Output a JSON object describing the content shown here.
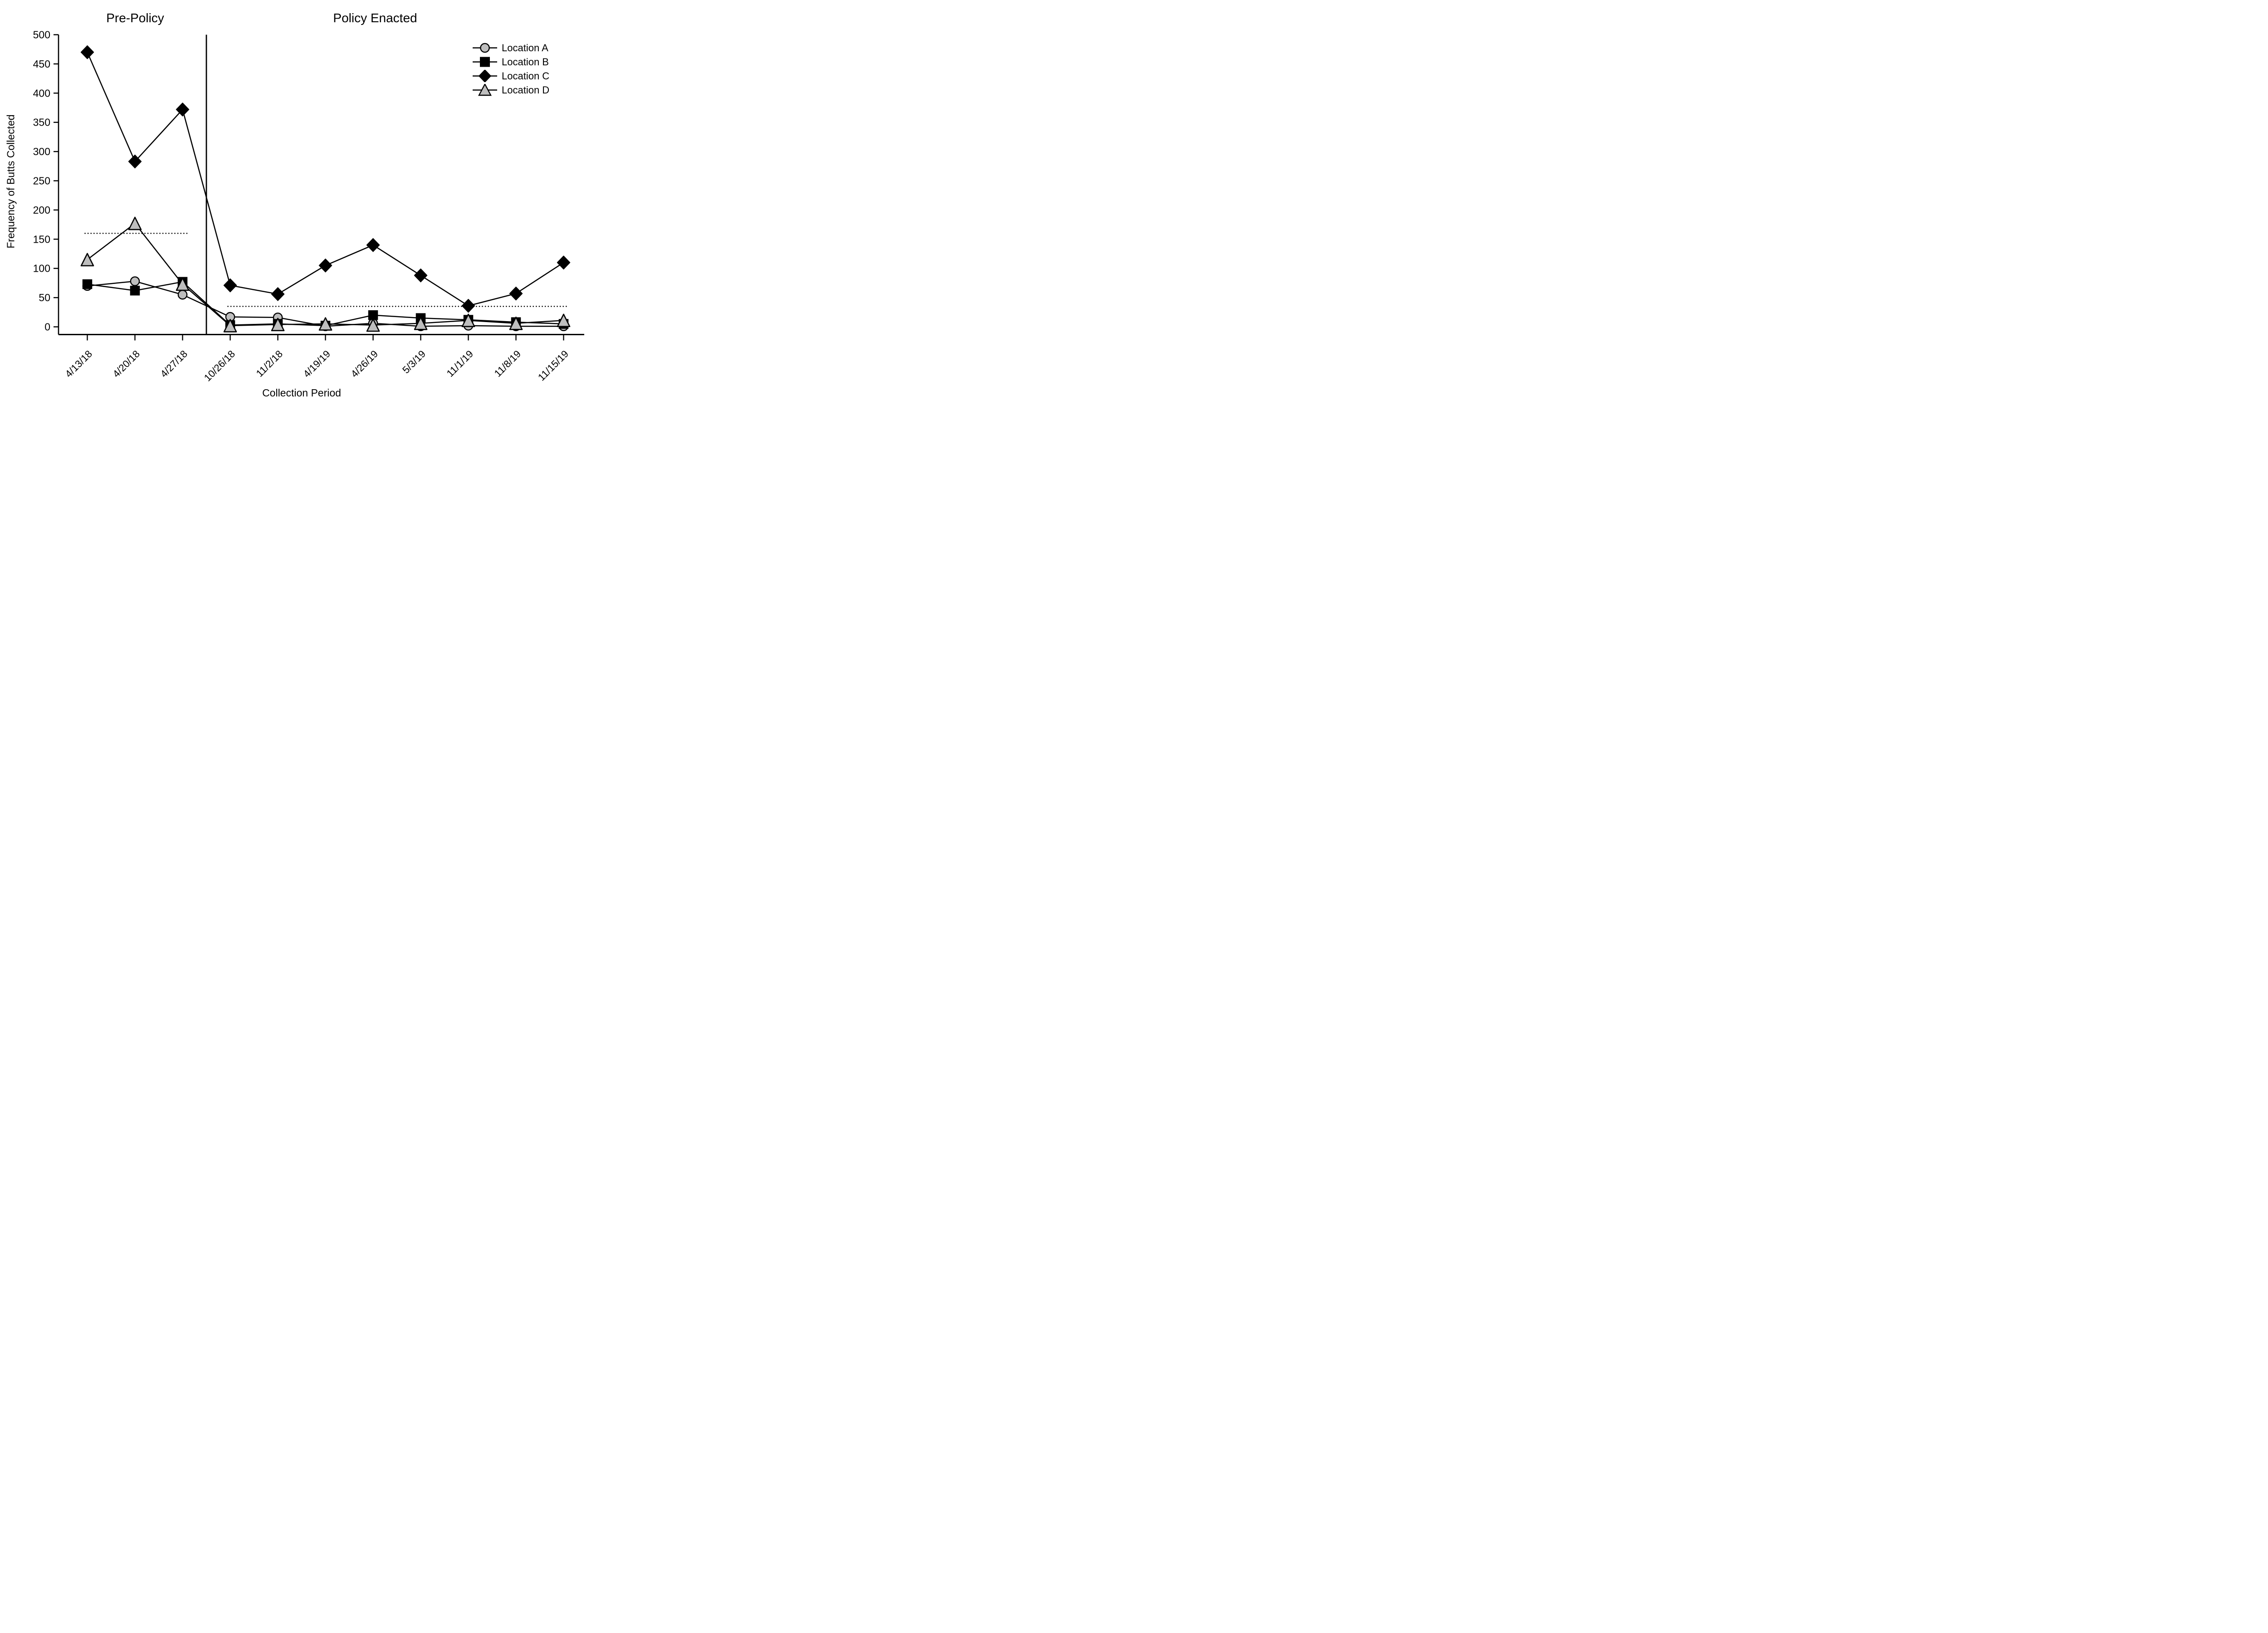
{
  "chart_data": {
    "type": "line",
    "title_left": "Pre-Policy",
    "title_right": "Policy Enacted",
    "xlabel": "Collection Period",
    "ylabel": "Frequency of Butts Collected",
    "ylim": [
      0,
      500
    ],
    "yticks": [
      0,
      50,
      100,
      150,
      200,
      250,
      300,
      350,
      400,
      450,
      500
    ],
    "categories": [
      "4/13/18",
      "4/20/18",
      "4/27/18",
      "10/26/18",
      "11/2/18",
      "4/19/19",
      "4/26/19",
      "5/3/19",
      "11/1/19",
      "11/8/19",
      "11/15/19"
    ],
    "separator_after_index": 2,
    "grid": false,
    "legend_position": "top-right",
    "series": [
      {
        "name": "Location A",
        "marker": "circle",
        "fill": "#bebebe",
        "values": [
          70,
          78,
          55,
          17,
          16,
          1,
          6,
          1,
          2,
          1,
          1
        ]
      },
      {
        "name": "Location B",
        "marker": "square",
        "fill": "#000000",
        "values": [
          73,
          62,
          77,
          3,
          5,
          2,
          20,
          15,
          12,
          8,
          5
        ]
      },
      {
        "name": "Location C",
        "marker": "diamond",
        "fill": "#000000",
        "values": [
          470,
          283,
          372,
          71,
          56,
          105,
          140,
          88,
          36,
          57,
          110
        ]
      },
      {
        "name": "Location D",
        "marker": "triangle",
        "fill": "#bebebe",
        "values": [
          115,
          177,
          73,
          2,
          4,
          5,
          3,
          6,
          11,
          6,
          11
        ]
      }
    ],
    "reference_lines": [
      {
        "value": 160,
        "from_index": 0,
        "to_index": 2
      },
      {
        "value": 35,
        "from_index": 3,
        "to_index": 10
      }
    ],
    "colors": {
      "line": "#000000",
      "marker_gray": "#bebebe",
      "marker_black": "#000000",
      "background": "#ffffff"
    }
  },
  "legend": {
    "entries": [
      "Location A",
      "Location B",
      "Location C",
      "Location D"
    ]
  }
}
